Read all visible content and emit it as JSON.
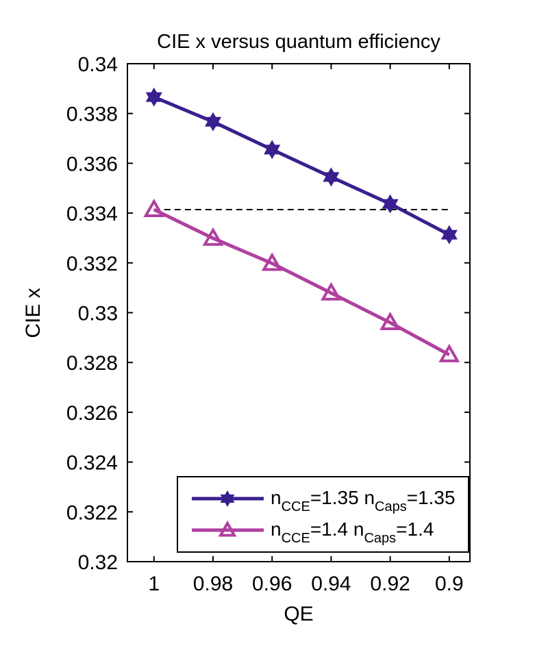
{
  "chart_data": {
    "type": "line",
    "title": "CIE x versus quantum efficiency",
    "xlabel": "QE",
    "ylabel": "CIE x",
    "x_reversed": true,
    "xlim": [
      0.893,
      1.009
    ],
    "ylim": [
      0.32,
      0.34
    ],
    "xticks": [
      1,
      0.98,
      0.96,
      0.94,
      0.92,
      0.9
    ],
    "xtick_labels": [
      "1",
      "0.98",
      "0.96",
      "0.94",
      "0.92",
      "0.9"
    ],
    "yticks": [
      0.32,
      0.322,
      0.324,
      0.326,
      0.328,
      0.33,
      0.332,
      0.334,
      0.336,
      0.338,
      0.34
    ],
    "ytick_labels": [
      "0.32",
      "0.322",
      "0.324",
      "0.326",
      "0.328",
      "0.33",
      "0.332",
      "0.334",
      "0.336",
      "0.338",
      "0.34"
    ],
    "grid": false,
    "legend_placement": "bottom-right",
    "x": [
      1,
      0.98,
      0.96,
      0.94,
      0.92,
      0.9
    ],
    "series": [
      {
        "name": "nCCE=1.35 nCaps=1.35",
        "label_parts": [
          "n",
          "CCE",
          "=1.35 n",
          "Caps",
          "=1.35"
        ],
        "marker": "hexagram",
        "color": "#3a1f8f",
        "values": [
          0.33866,
          0.33767,
          0.33655,
          0.33545,
          0.33437,
          0.33313
        ]
      },
      {
        "name": "nCCE=1.4 nCaps=1.4",
        "label_parts": [
          "n",
          "CCE",
          "=1.4 n",
          "Caps",
          "=1.4"
        ],
        "marker": "triangle-open",
        "color": "#b040a0",
        "values": [
          0.33414,
          0.33299,
          0.33198,
          0.33079,
          0.3296,
          0.32831
        ]
      }
    ],
    "reference_line": {
      "style": "dashed",
      "color": "#000000",
      "y": 0.33414,
      "x_range": [
        1,
        0.9
      ]
    }
  }
}
